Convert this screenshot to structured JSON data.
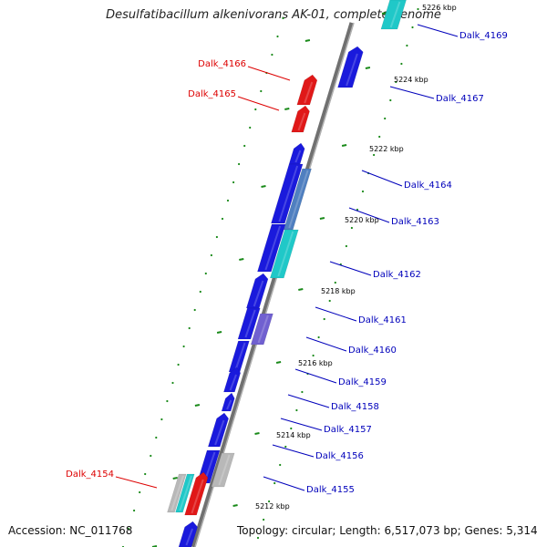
{
  "title": "Desulfatibacillum alkenivorans AK-01, complete genome",
  "footer": {
    "accession": "Accession: NC_011768",
    "summary": "Topology: circular; Length: 6,517,073 bp; Genes: 5,314"
  },
  "colors": {
    "backbone": "#808080",
    "gene_blue": "#1a1adc",
    "gene_cyan": "#20c8c8",
    "gene_red": "#e01818",
    "gene_steel": "#4f7fc0",
    "gene_violet": "#7060d0",
    "gene_gray": "#b8b8b8",
    "tick": "#1a8a1a",
    "dot": "#1a8a1a",
    "label_blue": "#0000bb",
    "label_red": "#dd0000"
  },
  "scale_labels": [
    "5226 kbp",
    "5224 kbp",
    "5222 kbp",
    "5220 kbp",
    "5218 kbp",
    "5216 kbp",
    "5214 kbp",
    "5212 kbp"
  ],
  "gene_labels": [
    {
      "text": "Dalk_4169",
      "color": "blue"
    },
    {
      "text": "Dalk_4166",
      "color": "red"
    },
    {
      "text": "Dalk_4167",
      "color": "blue"
    },
    {
      "text": "Dalk_4165",
      "color": "red"
    },
    {
      "text": "Dalk_4164",
      "color": "blue"
    },
    {
      "text": "Dalk_4163",
      "color": "blue"
    },
    {
      "text": "Dalk_4162",
      "color": "blue"
    },
    {
      "text": "Dalk_4161",
      "color": "blue"
    },
    {
      "text": "Dalk_4160",
      "color": "blue"
    },
    {
      "text": "Dalk_4159",
      "color": "blue"
    },
    {
      "text": "Dalk_4158",
      "color": "blue"
    },
    {
      "text": "Dalk_4157",
      "color": "blue"
    },
    {
      "text": "Dalk_4156",
      "color": "blue"
    },
    {
      "text": "Dalk_4154",
      "color": "red"
    },
    {
      "text": "Dalk_4155",
      "color": "blue"
    }
  ]
}
